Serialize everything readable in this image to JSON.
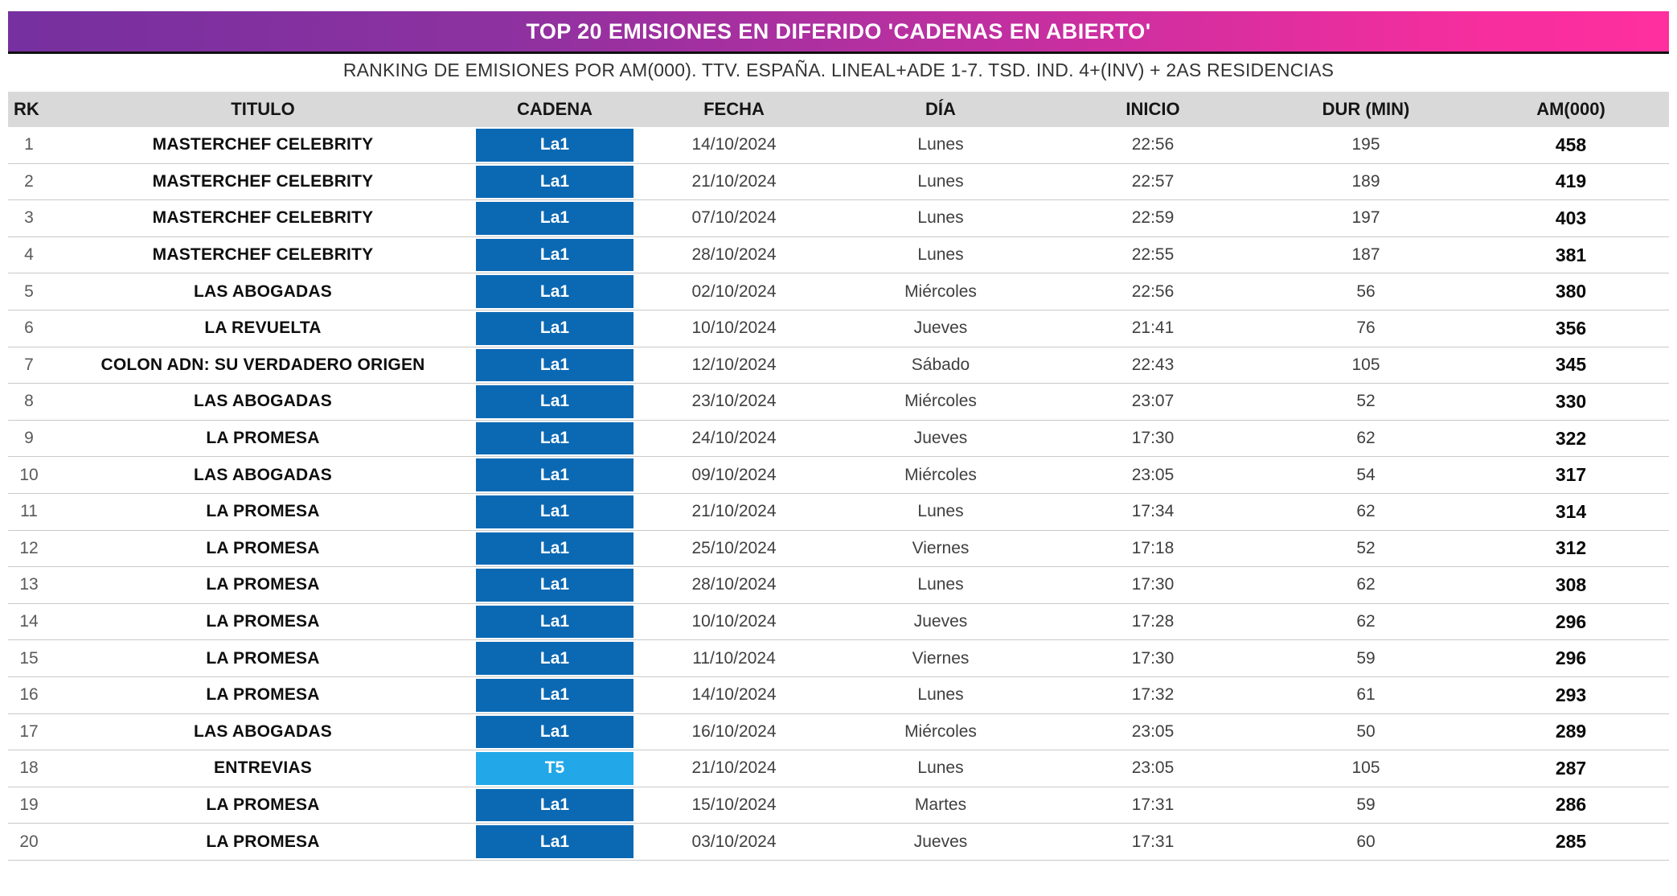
{
  "title_banner": {
    "text": "TOP 20 EMISIONES EN DIFERIDO 'CADENAS EN ABIERTO'",
    "gradient_left_color": "#76309F",
    "gradient_right_color": "#FF2F9E",
    "text_color": "#FFFFFF"
  },
  "subtitle": "RANKING DE EMISIONES POR AM(000). TTV. ESPAÑA. LINEAL+ADE 1-7. TSD. IND. 4+(INV) + 2AS RESIDENCIAS",
  "table": {
    "columns": [
      "RK",
      "TITULO",
      "CADENA",
      "FECHA",
      "DÍA",
      "INICIO",
      "DUR (MIN)",
      "AM(000)"
    ],
    "header_bg": "#D9D9D9",
    "channel_colors": {
      "La1": "#0B69B4",
      "T5": "#22A8E8"
    },
    "rows": [
      {
        "rk": "1",
        "titulo": "MASTERCHEF CELEBRITY",
        "cadena": "La1",
        "fecha": "14/10/2024",
        "dia": "Lunes",
        "inicio": "22:56",
        "dur": "195",
        "am": "458"
      },
      {
        "rk": "2",
        "titulo": "MASTERCHEF CELEBRITY",
        "cadena": "La1",
        "fecha": "21/10/2024",
        "dia": "Lunes",
        "inicio": "22:57",
        "dur": "189",
        "am": "419"
      },
      {
        "rk": "3",
        "titulo": "MASTERCHEF CELEBRITY",
        "cadena": "La1",
        "fecha": "07/10/2024",
        "dia": "Lunes",
        "inicio": "22:59",
        "dur": "197",
        "am": "403"
      },
      {
        "rk": "4",
        "titulo": "MASTERCHEF CELEBRITY",
        "cadena": "La1",
        "fecha": "28/10/2024",
        "dia": "Lunes",
        "inicio": "22:55",
        "dur": "187",
        "am": "381"
      },
      {
        "rk": "5",
        "titulo": "LAS ABOGADAS",
        "cadena": "La1",
        "fecha": "02/10/2024",
        "dia": "Miércoles",
        "inicio": "22:56",
        "dur": "56",
        "am": "380"
      },
      {
        "rk": "6",
        "titulo": "LA REVUELTA",
        "cadena": "La1",
        "fecha": "10/10/2024",
        "dia": "Jueves",
        "inicio": "21:41",
        "dur": "76",
        "am": "356"
      },
      {
        "rk": "7",
        "titulo": "COLON ADN: SU VERDADERO ORIGEN",
        "cadena": "La1",
        "fecha": "12/10/2024",
        "dia": "Sábado",
        "inicio": "22:43",
        "dur": "105",
        "am": "345"
      },
      {
        "rk": "8",
        "titulo": "LAS ABOGADAS",
        "cadena": "La1",
        "fecha": "23/10/2024",
        "dia": "Miércoles",
        "inicio": "23:07",
        "dur": "52",
        "am": "330"
      },
      {
        "rk": "9",
        "titulo": "LA PROMESA",
        "cadena": "La1",
        "fecha": "24/10/2024",
        "dia": "Jueves",
        "inicio": "17:30",
        "dur": "62",
        "am": "322"
      },
      {
        "rk": "10",
        "titulo": "LAS ABOGADAS",
        "cadena": "La1",
        "fecha": "09/10/2024",
        "dia": "Miércoles",
        "inicio": "23:05",
        "dur": "54",
        "am": "317"
      },
      {
        "rk": "11",
        "titulo": "LA PROMESA",
        "cadena": "La1",
        "fecha": "21/10/2024",
        "dia": "Lunes",
        "inicio": "17:34",
        "dur": "62",
        "am": "314"
      },
      {
        "rk": "12",
        "titulo": "LA PROMESA",
        "cadena": "La1",
        "fecha": "25/10/2024",
        "dia": "Viernes",
        "inicio": "17:18",
        "dur": "52",
        "am": "312"
      },
      {
        "rk": "13",
        "titulo": "LA PROMESA",
        "cadena": "La1",
        "fecha": "28/10/2024",
        "dia": "Lunes",
        "inicio": "17:30",
        "dur": "62",
        "am": "308"
      },
      {
        "rk": "14",
        "titulo": "LA PROMESA",
        "cadena": "La1",
        "fecha": "10/10/2024",
        "dia": "Jueves",
        "inicio": "17:28",
        "dur": "62",
        "am": "296"
      },
      {
        "rk": "15",
        "titulo": "LA PROMESA",
        "cadena": "La1",
        "fecha": "11/10/2024",
        "dia": "Viernes",
        "inicio": "17:30",
        "dur": "59",
        "am": "296"
      },
      {
        "rk": "16",
        "titulo": "LA PROMESA",
        "cadena": "La1",
        "fecha": "14/10/2024",
        "dia": "Lunes",
        "inicio": "17:32",
        "dur": "61",
        "am": "293"
      },
      {
        "rk": "17",
        "titulo": "LAS ABOGADAS",
        "cadena": "La1",
        "fecha": "16/10/2024",
        "dia": "Miércoles",
        "inicio": "23:05",
        "dur": "50",
        "am": "289"
      },
      {
        "rk": "18",
        "titulo": "ENTREVIAS",
        "cadena": "T5",
        "fecha": "21/10/2024",
        "dia": "Lunes",
        "inicio": "23:05",
        "dur": "105",
        "am": "287"
      },
      {
        "rk": "19",
        "titulo": "LA PROMESA",
        "cadena": "La1",
        "fecha": "15/10/2024",
        "dia": "Martes",
        "inicio": "17:31",
        "dur": "59",
        "am": "286"
      },
      {
        "rk": "20",
        "titulo": "LA PROMESA",
        "cadena": "La1",
        "fecha": "03/10/2024",
        "dia": "Jueves",
        "inicio": "17:31",
        "dur": "60",
        "am": "285"
      }
    ]
  },
  "chart_data": {
    "type": "table",
    "title": "TOP 20 EMISIONES EN DIFERIDO 'CADENAS EN ABIERTO'",
    "subtitle": "RANKING DE EMISIONES POR AM(000). TTV. ESPAÑA. LINEAL+ADE 1-7. TSD. IND. 4+(INV) + 2AS RESIDENCIAS",
    "columns": [
      "RK",
      "TITULO",
      "CADENA",
      "FECHA",
      "DÍA",
      "INICIO",
      "DUR (MIN)",
      "AM(000)"
    ],
    "rows": [
      [
        1,
        "MASTERCHEF CELEBRITY",
        "La1",
        "14/10/2024",
        "Lunes",
        "22:56",
        195,
        458
      ],
      [
        2,
        "MASTERCHEF CELEBRITY",
        "La1",
        "21/10/2024",
        "Lunes",
        "22:57",
        189,
        419
      ],
      [
        3,
        "MASTERCHEF CELEBRITY",
        "La1",
        "07/10/2024",
        "Lunes",
        "22:59",
        197,
        403
      ],
      [
        4,
        "MASTERCHEF CELEBRITY",
        "La1",
        "28/10/2024",
        "Lunes",
        "22:55",
        187,
        381
      ],
      [
        5,
        "LAS ABOGADAS",
        "La1",
        "02/10/2024",
        "Miércoles",
        "22:56",
        56,
        380
      ],
      [
        6,
        "LA REVUELTA",
        "La1",
        "10/10/2024",
        "Jueves",
        "21:41",
        76,
        356
      ],
      [
        7,
        "COLON ADN: SU VERDADERO ORIGEN",
        "La1",
        "12/10/2024",
        "Sábado",
        "22:43",
        105,
        345
      ],
      [
        8,
        "LAS ABOGADAS",
        "La1",
        "23/10/2024",
        "Miércoles",
        "23:07",
        52,
        330
      ],
      [
        9,
        "LA PROMESA",
        "La1",
        "24/10/2024",
        "Jueves",
        "17:30",
        62,
        322
      ],
      [
        10,
        "LAS ABOGADAS",
        "La1",
        "09/10/2024",
        "Miércoles",
        "23:05",
        54,
        317
      ],
      [
        11,
        "LA PROMESA",
        "La1",
        "21/10/2024",
        "Lunes",
        "17:34",
        62,
        314
      ],
      [
        12,
        "LA PROMESA",
        "La1",
        "25/10/2024",
        "Viernes",
        "17:18",
        52,
        312
      ],
      [
        13,
        "LA PROMESA",
        "La1",
        "28/10/2024",
        "Lunes",
        "17:30",
        62,
        308
      ],
      [
        14,
        "LA PROMESA",
        "La1",
        "10/10/2024",
        "Jueves",
        "17:28",
        62,
        296
      ],
      [
        15,
        "LA PROMESA",
        "La1",
        "11/10/2024",
        "Viernes",
        "17:30",
        59,
        296
      ],
      [
        16,
        "LA PROMESA",
        "La1",
        "14/10/2024",
        "Lunes",
        "17:32",
        61,
        293
      ],
      [
        17,
        "LAS ABOGADAS",
        "La1",
        "16/10/2024",
        "Miércoles",
        "23:05",
        50,
        289
      ],
      [
        18,
        "ENTREVIAS",
        "T5",
        "21/10/2024",
        "Lunes",
        "23:05",
        105,
        287
      ],
      [
        19,
        "LA PROMESA",
        "La1",
        "15/10/2024",
        "Martes",
        "17:31",
        59,
        286
      ],
      [
        20,
        "LA PROMESA",
        "La1",
        "03/10/2024",
        "Jueves",
        "17:31",
        60,
        285
      ]
    ]
  }
}
